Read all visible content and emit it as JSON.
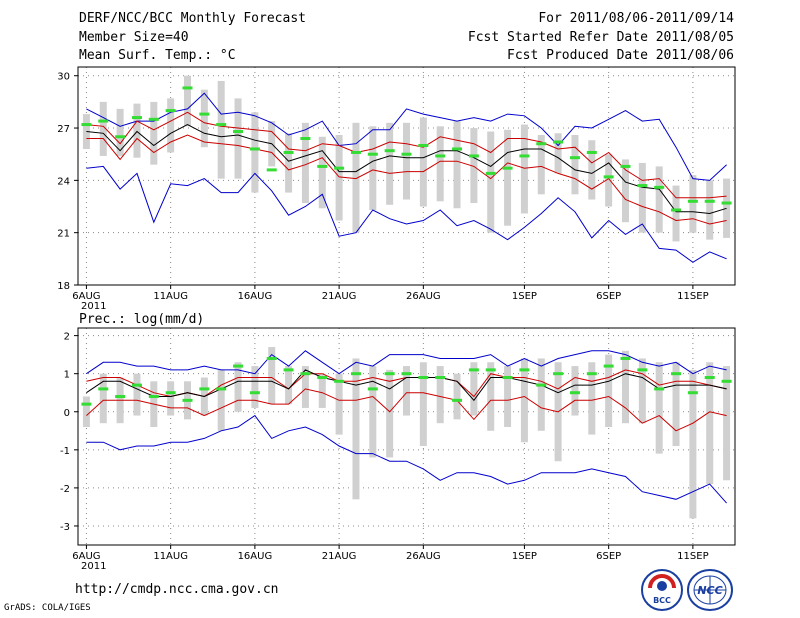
{
  "header": {
    "title": "DERF/NCC/BCC Monthly Forecast",
    "member_size": "Member Size=40",
    "variable": "Mean Surf. Temp.: °C",
    "period": "For 2011/08/06-2011/09/14",
    "started": "Fcst Started Refer Date 2011/08/05",
    "produced": "Fcst Produced Date 2011/08/06"
  },
  "footer": {
    "url": "http://cmdp.ncc.cma.gov.cn",
    "credit": "GrADS: COLA/IGES",
    "logo_left_text": "BCC",
    "logo_right_text": "NCC"
  },
  "colors": {
    "box": "#d0d0d0",
    "ens_mean": "#33dd33",
    "max_min": "#0000cc",
    "spread": "#cc0000",
    "median": "#000000"
  },
  "chart_data": [
    {
      "type": "line",
      "title": "Mean Surf. Temp.: °C",
      "ylim": [
        18,
        30.5
      ],
      "yticks": [
        18,
        21,
        24,
        27,
        30
      ],
      "xlim": [
        -0.5,
        38.5
      ],
      "xtick_positions": [
        0,
        5,
        10,
        15,
        20,
        26,
        31,
        36
      ],
      "xtick_labels": [
        "6AUG",
        "11AUG",
        "16AUG",
        "21AUG",
        "26AUG",
        "1SEP",
        "6SEP",
        "11SEP"
      ],
      "year_label": "2011",
      "series": [
        {
          "name": "max",
          "values": [
            28.1,
            27.6,
            27.1,
            27.4,
            27.4,
            27.9,
            28.1,
            29.0,
            27.8,
            27.9,
            27.7,
            27.3,
            26.6,
            26.9,
            27.4,
            26.0,
            26.1,
            26.9,
            26.9,
            28.1,
            27.8,
            27.6,
            27.4,
            27.6,
            27.4,
            27.8,
            27.7,
            27.0,
            26.0,
            27.1,
            27.0,
            27.5,
            28.0,
            27.4,
            27.5,
            25.9,
            24.1,
            24.0,
            24.9
          ]
        },
        {
          "name": "upper_spread",
          "values": [
            27.2,
            27.1,
            26.1,
            27.4,
            26.9,
            27.4,
            27.9,
            27.3,
            27.1,
            27.0,
            26.9,
            26.8,
            25.8,
            25.7,
            26.1,
            26.0,
            25.6,
            25.8,
            26.2,
            26.1,
            25.9,
            26.5,
            26.3,
            26.1,
            25.6,
            26.4,
            26.4,
            26.2,
            25.8,
            25.9,
            25.0,
            25.6,
            24.6,
            24.0,
            24.1,
            23.0,
            23.0,
            23.0,
            23.1
          ]
        },
        {
          "name": "median",
          "values": [
            26.8,
            26.7,
            25.7,
            26.8,
            26.0,
            26.7,
            27.2,
            26.7,
            26.5,
            26.6,
            26.3,
            26.1,
            25.1,
            25.4,
            25.7,
            24.5,
            24.5,
            25.1,
            25.4,
            25.3,
            25.3,
            25.7,
            25.7,
            25.3,
            24.8,
            25.6,
            25.8,
            25.8,
            25.3,
            24.6,
            24.4,
            25.0,
            23.9,
            23.6,
            23.5,
            22.2,
            22.2,
            22.1,
            22.4
          ]
        },
        {
          "name": "lower_spread",
          "values": [
            26.4,
            26.4,
            25.2,
            26.4,
            25.6,
            26.2,
            26.6,
            26.2,
            26.1,
            26.0,
            25.8,
            25.6,
            24.6,
            24.9,
            25.3,
            24.2,
            24.1,
            24.6,
            24.4,
            24.5,
            24.5,
            25.1,
            25.1,
            24.8,
            24.1,
            25.0,
            24.7,
            24.8,
            24.4,
            24.1,
            23.5,
            24.1,
            22.9,
            22.5,
            22.2,
            21.7,
            21.8,
            21.5,
            21.7
          ]
        },
        {
          "name": "min",
          "values": [
            24.7,
            24.8,
            23.5,
            24.4,
            21.6,
            23.8,
            23.7,
            24.1,
            23.3,
            23.3,
            24.4,
            23.4,
            22.0,
            22.5,
            23.2,
            20.8,
            21.0,
            22.3,
            21.8,
            21.5,
            21.7,
            22.3,
            21.4,
            21.7,
            21.2,
            20.6,
            21.3,
            22.1,
            23.0,
            22.2,
            20.7,
            21.7,
            20.9,
            21.5,
            20.1,
            20.0,
            19.3,
            19.9,
            19.5
          ]
        },
        {
          "name": "ensemble_mean",
          "values": [
            27.2,
            27.4,
            26.5,
            27.6,
            27.5,
            28.0,
            29.3,
            27.8,
            27.2,
            26.8,
            25.8,
            24.6,
            25.6,
            26.4,
            24.8,
            24.7,
            25.6,
            25.5,
            25.7,
            25.5,
            26.0,
            25.4,
            25.8,
            25.4,
            24.4,
            24.7,
            25.4,
            26.1,
            26.2,
            25.3,
            25.6,
            24.2,
            24.8,
            23.7,
            23.6,
            22.3,
            22.8,
            22.8,
            22.7
          ]
        },
        {
          "name": "box_high",
          "values": [
            27.8,
            28.5,
            28.1,
            28.4,
            28.5,
            28.7,
            30.0,
            29.2,
            29.7,
            28.7,
            27.9,
            27.4,
            26.7,
            27.3,
            26.5,
            26.6,
            27.3,
            27.1,
            27.3,
            27.3,
            27.6,
            27.1,
            27.4,
            27.0,
            26.8,
            26.9,
            27.2,
            26.6,
            26.7,
            26.6,
            26.3,
            25.5,
            25.2,
            25.0,
            24.8,
            23.7,
            24.3,
            24.0,
            24.1
          ]
        },
        {
          "name": "box_low",
          "values": [
            25.8,
            25.4,
            25.4,
            25.3,
            24.9,
            25.6,
            27.1,
            25.9,
            24.1,
            24.1,
            23.3,
            24.8,
            23.3,
            22.7,
            22.4,
            21.7,
            21.0,
            22.3,
            22.6,
            22.9,
            22.5,
            22.8,
            22.4,
            22.7,
            21.0,
            21.4,
            22.1,
            23.2,
            24.4,
            23.2,
            22.9,
            22.5,
            21.6,
            21.0,
            21.0,
            20.5,
            21.0,
            20.6,
            20.7
          ]
        }
      ]
    },
    {
      "type": "line",
      "title": "Prec.: log(mm/d)",
      "ylim": [
        -3.5,
        2.2
      ],
      "yticks": [
        -3,
        -2,
        -1,
        0,
        1,
        2
      ],
      "xlim": [
        -0.5,
        38.5
      ],
      "xtick_positions": [
        0,
        5,
        10,
        15,
        20,
        26,
        31,
        36
      ],
      "xtick_labels": [
        "6AUG",
        "11AUG",
        "16AUG",
        "21AUG",
        "26AUG",
        "1SEP",
        "6SEP",
        "11SEP"
      ],
      "year_label": "2011",
      "series": [
        {
          "name": "max",
          "values": [
            1.0,
            1.3,
            1.3,
            1.2,
            1.2,
            1.1,
            1.1,
            1.2,
            1.1,
            1.1,
            1.0,
            1.5,
            1.2,
            1.6,
            1.3,
            1.0,
            1.3,
            1.2,
            1.5,
            1.5,
            1.5,
            1.4,
            1.4,
            1.4,
            1.5,
            1.2,
            1.4,
            1.2,
            1.4,
            1.5,
            1.6,
            1.6,
            1.5,
            1.3,
            1.2,
            1.3,
            1.0,
            1.2,
            1.1
          ]
        },
        {
          "name": "upper_spread",
          "values": [
            0.8,
            0.9,
            0.9,
            0.7,
            0.5,
            0.4,
            0.5,
            0.4,
            0.7,
            0.9,
            0.9,
            0.9,
            0.6,
            1.0,
            1.0,
            0.8,
            0.8,
            0.9,
            0.8,
            0.9,
            0.9,
            0.9,
            0.8,
            0.4,
            1.0,
            0.9,
            0.9,
            0.8,
            0.6,
            0.9,
            0.8,
            0.9,
            1.1,
            1.0,
            0.7,
            0.8,
            0.8,
            0.7,
            0.6
          ]
        },
        {
          "name": "median",
          "values": [
            0.5,
            0.8,
            0.8,
            0.6,
            0.4,
            0.4,
            0.5,
            0.4,
            0.6,
            0.8,
            0.8,
            0.8,
            0.6,
            1.1,
            0.9,
            0.8,
            0.7,
            0.8,
            0.6,
            0.9,
            0.9,
            0.9,
            0.8,
            0.3,
            0.9,
            0.9,
            0.8,
            0.7,
            0.5,
            0.7,
            0.7,
            0.8,
            1.0,
            0.9,
            0.6,
            0.7,
            0.7,
            0.7,
            0.6
          ]
        },
        {
          "name": "lower_spread",
          "values": [
            -0.1,
            0.3,
            0.3,
            0.3,
            0.2,
            0.1,
            0.1,
            -0.1,
            0.1,
            0.3,
            0.3,
            0.2,
            0.2,
            0.6,
            0.5,
            0.3,
            0.3,
            0.4,
            0.0,
            0.5,
            0.5,
            0.4,
            0.3,
            -0.2,
            0.3,
            0.3,
            0.4,
            0.1,
            0.0,
            0.3,
            0.3,
            0.4,
            0.1,
            -0.3,
            -0.1,
            -0.5,
            -0.3,
            0.0,
            -0.1
          ]
        },
        {
          "name": "min",
          "values": [
            -0.8,
            -0.8,
            -1.0,
            -0.9,
            -0.9,
            -0.8,
            -0.8,
            -0.7,
            -0.5,
            -0.4,
            -0.1,
            -0.7,
            -0.5,
            -0.4,
            -0.6,
            -0.9,
            -1.1,
            -1.1,
            -1.3,
            -1.3,
            -1.5,
            -1.8,
            -1.6,
            -1.6,
            -1.7,
            -1.9,
            -1.8,
            -1.6,
            -1.6,
            -1.6,
            -1.5,
            -1.6,
            -1.7,
            -2.1,
            -2.2,
            -2.3,
            -2.1,
            -1.9,
            -2.4
          ]
        },
        {
          "name": "ensemble_mean",
          "values": [
            0.2,
            0.6,
            0.4,
            0.7,
            0.4,
            0.5,
            0.3,
            0.6,
            0.6,
            1.2,
            0.5,
            1.4,
            1.1,
            1.0,
            0.9,
            0.8,
            1.0,
            0.6,
            1.0,
            1.0,
            0.9,
            0.9,
            0.3,
            1.1,
            1.1,
            0.9,
            1.1,
            0.7,
            1.0,
            0.5,
            1.0,
            1.2,
            1.4,
            1.1,
            0.6,
            1.0,
            0.5,
            0.9,
            0.8
          ]
        },
        {
          "name": "box_high",
          "values": [
            0.4,
            1.0,
            0.9,
            1.0,
            0.8,
            0.8,
            0.8,
            0.9,
            1.1,
            1.3,
            1.2,
            1.7,
            1.2,
            1.2,
            1.0,
            1.0,
            1.4,
            1.2,
            1.1,
            1.2,
            1.3,
            1.2,
            1.0,
            1.3,
            1.3,
            1.2,
            1.4,
            1.4,
            1.3,
            1.2,
            1.3,
            1.5,
            1.6,
            1.4,
            1.3,
            1.3,
            1.1,
            1.3,
            1.2
          ]
        },
        {
          "name": "box_low",
          "values": [
            -0.4,
            -0.3,
            -0.3,
            -0.1,
            -0.4,
            -0.1,
            -0.2,
            -0.1,
            -0.5,
            0.0,
            0.1,
            0.2,
            0.2,
            0.1,
            0.1,
            -0.6,
            -2.3,
            -1.2,
            -1.2,
            -0.1,
            -0.9,
            -0.3,
            -0.2,
            -0.1,
            -0.5,
            -0.4,
            -0.8,
            -0.5,
            -1.3,
            -0.1,
            -0.6,
            -0.4,
            -0.3,
            -0.3,
            -1.1,
            -0.9,
            -2.8,
            -1.9,
            -1.8
          ]
        }
      ]
    }
  ]
}
